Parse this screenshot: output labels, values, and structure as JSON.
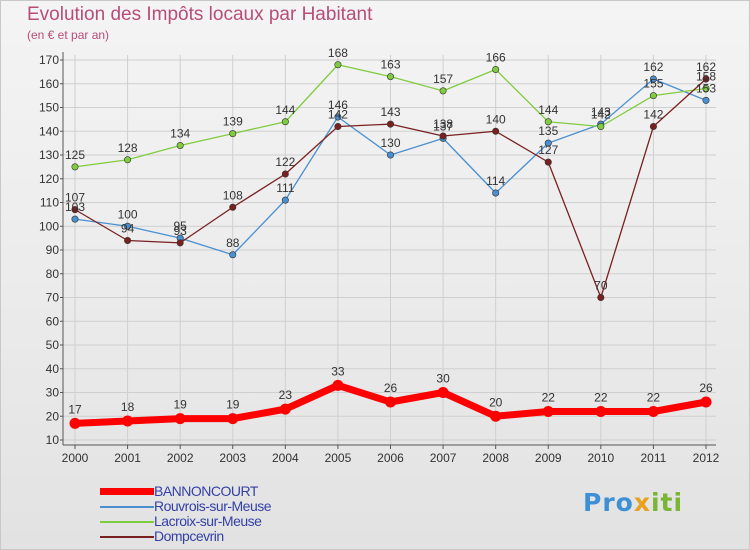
{
  "header": {
    "title": "Evolution des Impôts locaux par Habitant",
    "subtitle": "(en € et par an)"
  },
  "logo": {
    "part1": "Pro",
    "part2": "x",
    "part3": "iti"
  },
  "chart_data": {
    "type": "line",
    "title": "Evolution des Impôts locaux par Habitant",
    "subtitle": "(en € et par an)",
    "xlabel": "",
    "ylabel": "",
    "ylim": [
      10,
      170
    ],
    "yticks": [
      10,
      20,
      30,
      40,
      50,
      60,
      70,
      80,
      90,
      100,
      110,
      120,
      130,
      140,
      150,
      160,
      170
    ],
    "categories": [
      "2000",
      "2001",
      "2002",
      "2003",
      "2004",
      "2005",
      "2006",
      "2007",
      "2008",
      "2009",
      "2010",
      "2011",
      "2012"
    ],
    "grid": true,
    "legend_position": "bottom-left",
    "series": [
      {
        "name": "BANNONCOURT",
        "color": "#ff0000",
        "values": [
          17,
          18,
          19,
          19,
          23,
          33,
          26,
          30,
          20,
          22,
          22,
          22,
          26
        ],
        "labels": [
          "17",
          "18",
          "19",
          "19",
          "23",
          "33",
          "26",
          "30",
          "20",
          "22",
          "22",
          "22",
          "26"
        ]
      },
      {
        "name": "Rouvrois-sur-Meuse",
        "color": "#4a90d0",
        "values": [
          103,
          100,
          95,
          88,
          111,
          146,
          130,
          137,
          114,
          135,
          143,
          162,
          153
        ],
        "labels": [
          "103",
          "100",
          "95",
          "88",
          "111",
          "146",
          "130",
          "137",
          "114",
          "135",
          "143",
          "162",
          "153"
        ]
      },
      {
        "name": "Lacroix-sur-Meuse",
        "color": "#80cc40",
        "values": [
          125,
          128,
          134,
          139,
          144,
          168,
          163,
          157,
          166,
          144,
          142,
          155,
          158
        ],
        "labels": [
          "125",
          "128",
          "134",
          "139",
          "144",
          "168",
          "163",
          "157",
          "166",
          "144",
          "142",
          "155",
          "158"
        ]
      },
      {
        "name": "Dompcevrin",
        "color": "#7a2020",
        "values": [
          107,
          94,
          93,
          108,
          122,
          142,
          143,
          138,
          140,
          127,
          70,
          142,
          162
        ],
        "labels": [
          "107",
          "94",
          "93",
          "108",
          "122",
          "142",
          "143",
          "138",
          "140",
          "127",
          "70",
          "142",
          "162"
        ]
      }
    ]
  }
}
